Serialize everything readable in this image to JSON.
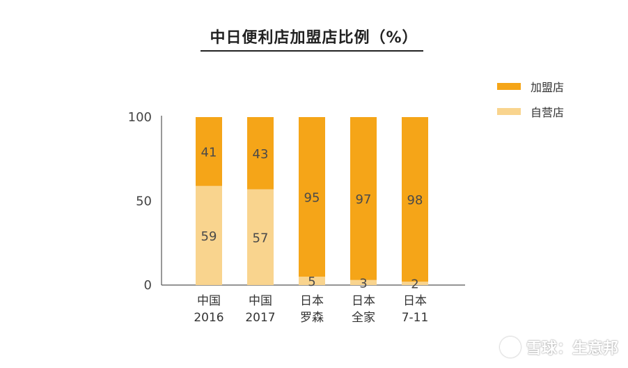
{
  "title": "中日便利店加盟店比例（%）",
  "legend": {
    "items": [
      {
        "label": "加盟店",
        "color": "#F5A518"
      },
      {
        "label": "自营店",
        "color": "#F9D48E"
      }
    ]
  },
  "watermark": {
    "text": "雪球：生意邦"
  },
  "colors": {
    "franchise": "#F5A518",
    "self_operated": "#F9D48E",
    "label_text": "#4a4a4a",
    "axis": "#555555"
  },
  "chart_data": {
    "type": "bar",
    "stacked": true,
    "title": "中日便利店加盟店比例（%）",
    "categories": [
      {
        "line1": "中国",
        "line2": "2016"
      },
      {
        "line1": "中国",
        "line2": "2017"
      },
      {
        "line1": "日本",
        "line2": "罗森"
      },
      {
        "line1": "日本",
        "line2": "全家"
      },
      {
        "line1": "日本",
        "line2": "7-11"
      }
    ],
    "series": [
      {
        "name": "自营店",
        "values": [
          59,
          57,
          5,
          3,
          2
        ]
      },
      {
        "name": "加盟店",
        "values": [
          41,
          43,
          95,
          97,
          98
        ]
      }
    ],
    "ylim": [
      0,
      100
    ],
    "yticks": [
      0,
      50,
      100
    ],
    "xlabel": "",
    "ylabel": "",
    "grid": false,
    "legend_position": "top-right"
  }
}
